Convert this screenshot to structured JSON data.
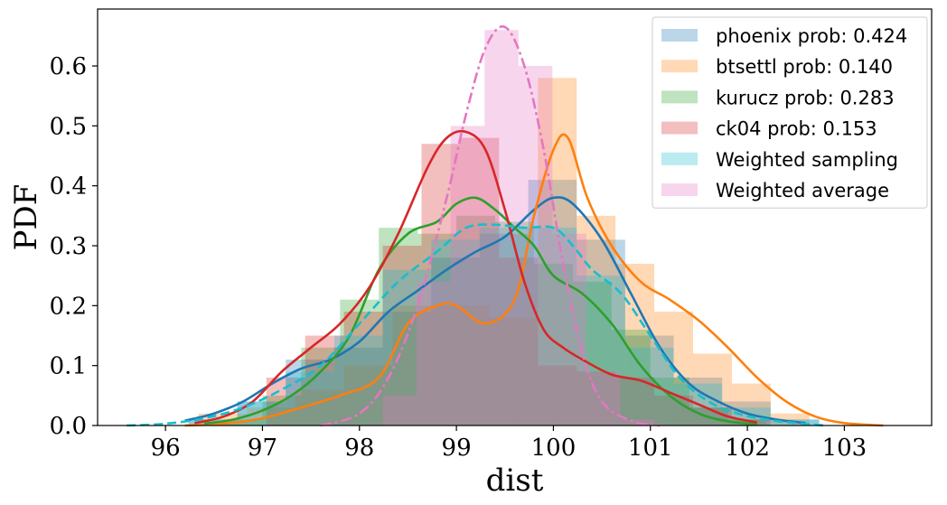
{
  "chart_data": {
    "type": "area",
    "xlabel": "dist",
    "ylabel": "PDF",
    "xlim": [
      95.3,
      103.9
    ],
    "ylim": [
      0.0,
      0.695
    ],
    "xticks": [
      96,
      97,
      98,
      99,
      100,
      101,
      102,
      103
    ],
    "yticks": [
      0.0,
      0.1,
      0.2,
      0.3,
      0.4,
      0.5,
      0.6
    ],
    "ytick_labels": [
      "0.0",
      "0.1",
      "0.2",
      "0.3",
      "0.4",
      "0.5",
      "0.6"
    ],
    "legend_position": "upper right",
    "grid": false,
    "histograms": [
      {
        "name": "phoenix prob: 0.424",
        "color": "#1f77b4",
        "bins": [
          {
            "x0": 96.24,
            "x1": 96.74,
            "h": 0.01
          },
          {
            "x0": 96.74,
            "x1": 97.24,
            "h": 0.04
          },
          {
            "x0": 97.24,
            "x1": 97.74,
            "h": 0.11
          },
          {
            "x0": 97.74,
            "x1": 98.24,
            "h": 0.13
          },
          {
            "x0": 98.24,
            "x1": 98.74,
            "h": 0.19
          },
          {
            "x0": 98.74,
            "x1": 99.24,
            "h": 0.28
          },
          {
            "x0": 99.24,
            "x1": 99.74,
            "h": 0.32
          },
          {
            "x0": 99.74,
            "x1": 100.24,
            "h": 0.41
          },
          {
            "x0": 100.24,
            "x1": 100.74,
            "h": 0.31
          },
          {
            "x0": 100.74,
            "x1": 101.24,
            "h": 0.15
          },
          {
            "x0": 101.24,
            "x1": 101.74,
            "h": 0.08
          },
          {
            "x0": 101.74,
            "x1": 102.24,
            "h": 0.04
          },
          {
            "x0": 102.24,
            "x1": 102.74,
            "h": 0.01
          }
        ]
      },
      {
        "name": "btsettl prob: 0.140",
        "color": "#ff7f0e",
        "bins": [
          {
            "x0": 96.34,
            "x1": 96.84,
            "h": 0.02
          },
          {
            "x0": 96.84,
            "x1": 97.34,
            "h": 0.03
          },
          {
            "x0": 97.34,
            "x1": 97.84,
            "h": 0.06
          },
          {
            "x0": 97.84,
            "x1": 98.34,
            "h": 0.1
          },
          {
            "x0": 98.34,
            "x1": 98.84,
            "h": 0.2
          },
          {
            "x0": 98.84,
            "x1": 99.34,
            "h": 0.2
          },
          {
            "x0": 99.34,
            "x1": 99.84,
            "h": 0.18
          },
          {
            "x0": 99.84,
            "x1": 100.24,
            "h": 0.58
          },
          {
            "x0": 100.24,
            "x1": 100.64,
            "h": 0.35
          },
          {
            "x0": 100.64,
            "x1": 101.04,
            "h": 0.27
          },
          {
            "x0": 101.04,
            "x1": 101.44,
            "h": 0.19
          },
          {
            "x0": 101.44,
            "x1": 101.84,
            "h": 0.12
          },
          {
            "x0": 101.84,
            "x1": 102.24,
            "h": 0.07
          },
          {
            "x0": 102.24,
            "x1": 102.64,
            "h": 0.02
          }
        ]
      },
      {
        "name": "kurucz prob: 0.283",
        "color": "#2ca02c",
        "bins": [
          {
            "x0": 96.6,
            "x1": 97.0,
            "h": 0.01
          },
          {
            "x0": 97.0,
            "x1": 97.4,
            "h": 0.05
          },
          {
            "x0": 97.4,
            "x1": 97.8,
            "h": 0.13
          },
          {
            "x0": 97.8,
            "x1": 98.2,
            "h": 0.21
          },
          {
            "x0": 98.2,
            "x1": 98.6,
            "h": 0.33
          },
          {
            "x0": 98.6,
            "x1": 99.0,
            "h": 0.32
          },
          {
            "x0": 99.0,
            "x1": 99.4,
            "h": 0.35
          },
          {
            "x0": 99.4,
            "x1": 99.8,
            "h": 0.34
          },
          {
            "x0": 99.8,
            "x1": 100.2,
            "h": 0.27
          },
          {
            "x0": 100.2,
            "x1": 100.6,
            "h": 0.24
          },
          {
            "x0": 100.6,
            "x1": 101.0,
            "h": 0.16
          },
          {
            "x0": 101.0,
            "x1": 101.4,
            "h": 0.08
          },
          {
            "x0": 101.4,
            "x1": 101.8,
            "h": 0.03
          },
          {
            "x0": 101.8,
            "x1": 102.2,
            "h": 0.01
          }
        ]
      },
      {
        "name": "ck04 prob: 0.153",
        "color": "#d62728",
        "bins": [
          {
            "x0": 97.04,
            "x1": 97.44,
            "h": 0.08
          },
          {
            "x0": 97.44,
            "x1": 97.84,
            "h": 0.15
          },
          {
            "x0": 97.84,
            "x1": 98.24,
            "h": 0.19
          },
          {
            "x0": 98.24,
            "x1": 98.64,
            "h": 0.3
          },
          {
            "x0": 98.64,
            "x1": 99.04,
            "h": 0.47
          },
          {
            "x0": 99.04,
            "x1": 99.44,
            "h": 0.48
          },
          {
            "x0": 99.44,
            "x1": 99.84,
            "h": 0.28
          },
          {
            "x0": 99.84,
            "x1": 100.24,
            "h": 0.1
          },
          {
            "x0": 100.24,
            "x1": 100.64,
            "h": 0.09
          },
          {
            "x0": 100.64,
            "x1": 101.04,
            "h": 0.08
          },
          {
            "x0": 101.04,
            "x1": 101.44,
            "h": 0.05
          },
          {
            "x0": 101.44,
            "x1": 101.84,
            "h": 0.03
          },
          {
            "x0": 101.84,
            "x1": 102.24,
            "h": 0.01
          }
        ]
      },
      {
        "name": "Weighted sampling",
        "color": "#17becf",
        "bins": [
          {
            "x0": 96.24,
            "x1": 96.74,
            "h": 0.01
          },
          {
            "x0": 96.74,
            "x1": 97.24,
            "h": 0.04
          },
          {
            "x0": 97.24,
            "x1": 97.74,
            "h": 0.09
          },
          {
            "x0": 97.74,
            "x1": 98.24,
            "h": 0.15
          },
          {
            "x0": 98.24,
            "x1": 98.74,
            "h": 0.26
          },
          {
            "x0": 98.74,
            "x1": 99.24,
            "h": 0.31
          },
          {
            "x0": 99.24,
            "x1": 99.74,
            "h": 0.33
          },
          {
            "x0": 99.74,
            "x1": 100.24,
            "h": 0.33
          },
          {
            "x0": 100.24,
            "x1": 100.74,
            "h": 0.25
          },
          {
            "x0": 100.74,
            "x1": 101.24,
            "h": 0.13
          },
          {
            "x0": 101.24,
            "x1": 101.74,
            "h": 0.07
          },
          {
            "x0": 101.74,
            "x1": 102.24,
            "h": 0.03
          },
          {
            "x0": 102.24,
            "x1": 102.74,
            "h": 0.01
          }
        ]
      },
      {
        "name": "Weighted average",
        "color": "#e377c2",
        "bins": [
          {
            "x0": 98.24,
            "x1": 98.59,
            "h": 0.05
          },
          {
            "x0": 98.59,
            "x1": 98.94,
            "h": 0.24
          },
          {
            "x0": 98.94,
            "x1": 99.29,
            "h": 0.5
          },
          {
            "x0": 99.29,
            "x1": 99.64,
            "h": 0.66
          },
          {
            "x0": 99.64,
            "x1": 99.99,
            "h": 0.6
          },
          {
            "x0": 99.99,
            "x1": 100.34,
            "h": 0.32
          },
          {
            "x0": 100.34,
            "x1": 100.69,
            "h": 0.09
          },
          {
            "x0": 100.69,
            "x1": 101.04,
            "h": 0.01
          }
        ]
      }
    ],
    "curves": [
      {
        "name": "phoenix KDE",
        "color": "#1f77b4",
        "dash": "solid",
        "x": [
          96.2,
          96.5,
          96.8,
          97.1,
          97.4,
          97.7,
          98.0,
          98.3,
          98.6,
          98.9,
          99.2,
          99.5,
          99.8,
          100.0,
          100.2,
          100.5,
          100.8,
          101.1,
          101.4,
          101.7,
          102.0,
          102.3,
          102.6
        ],
        "y": [
          0.008,
          0.02,
          0.04,
          0.07,
          0.095,
          0.11,
          0.14,
          0.19,
          0.225,
          0.26,
          0.29,
          0.315,
          0.36,
          0.38,
          0.37,
          0.31,
          0.22,
          0.13,
          0.07,
          0.04,
          0.02,
          0.01,
          0.004
        ]
      },
      {
        "name": "btsettl KDE",
        "color": "#ff7f0e",
        "dash": "solid",
        "x": [
          96.2,
          96.6,
          97.0,
          97.4,
          97.8,
          98.2,
          98.5,
          98.8,
          99.0,
          99.3,
          99.6,
          99.8,
          100.0,
          100.15,
          100.35,
          100.6,
          100.9,
          101.2,
          101.5,
          101.8,
          102.1,
          102.4,
          102.7,
          103.0,
          103.4
        ],
        "y": [
          0.0,
          0.003,
          0.012,
          0.03,
          0.05,
          0.08,
          0.17,
          0.2,
          0.2,
          0.17,
          0.21,
          0.35,
          0.46,
          0.48,
          0.38,
          0.3,
          0.24,
          0.21,
          0.175,
          0.13,
          0.08,
          0.04,
          0.015,
          0.004,
          0.0
        ]
      },
      {
        "name": "kurucz KDE",
        "color": "#2ca02c",
        "dash": "solid",
        "x": [
          96.4,
          96.7,
          97.0,
          97.3,
          97.6,
          97.9,
          98.2,
          98.5,
          98.8,
          99.0,
          99.2,
          99.4,
          99.6,
          99.8,
          100.0,
          100.3,
          100.6,
          100.9,
          101.2,
          101.5,
          101.8,
          102.1
        ],
        "y": [
          0.003,
          0.01,
          0.025,
          0.05,
          0.09,
          0.15,
          0.26,
          0.32,
          0.34,
          0.37,
          0.38,
          0.36,
          0.33,
          0.3,
          0.25,
          0.22,
          0.17,
          0.1,
          0.05,
          0.02,
          0.007,
          0.002
        ]
      },
      {
        "name": "ck04 KDE",
        "color": "#d62728",
        "dash": "solid",
        "x": [
          96.3,
          96.6,
          96.9,
          97.2,
          97.5,
          97.8,
          98.1,
          98.4,
          98.7,
          98.9,
          99.1,
          99.3,
          99.5,
          99.7,
          99.9,
          100.1,
          100.3,
          100.6,
          100.9,
          101.2,
          101.5,
          101.8,
          102.1
        ],
        "y": [
          0.004,
          0.015,
          0.04,
          0.09,
          0.13,
          0.17,
          0.23,
          0.32,
          0.43,
          0.48,
          0.49,
          0.46,
          0.36,
          0.24,
          0.16,
          0.13,
          0.11,
          0.085,
          0.075,
          0.055,
          0.035,
          0.015,
          0.005
        ]
      },
      {
        "name": "Weighted sampling KDE",
        "color": "#17becf",
        "dash": "dashed",
        "x": [
          95.6,
          96.0,
          96.4,
          96.8,
          97.2,
          97.6,
          98.0,
          98.4,
          98.8,
          99.1,
          99.4,
          99.7,
          100.0,
          100.2,
          100.4,
          100.7,
          101.0,
          101.3,
          101.6,
          101.9,
          102.2,
          102.5,
          102.8
        ],
        "y": [
          0.0,
          0.003,
          0.012,
          0.03,
          0.06,
          0.1,
          0.17,
          0.24,
          0.29,
          0.33,
          0.335,
          0.33,
          0.33,
          0.3,
          0.26,
          0.22,
          0.15,
          0.08,
          0.04,
          0.02,
          0.01,
          0.004,
          0.0
        ]
      },
      {
        "name": "Weighted average KDE",
        "color": "#e377c2",
        "dash": "dashdot",
        "x": [
          97.6,
          98.0,
          98.3,
          98.6,
          98.9,
          99.1,
          99.3,
          99.5,
          99.7,
          99.9,
          100.1,
          100.3,
          100.5,
          100.8,
          101.1
        ],
        "y": [
          0.0,
          0.02,
          0.08,
          0.2,
          0.38,
          0.52,
          0.63,
          0.665,
          0.6,
          0.46,
          0.27,
          0.12,
          0.04,
          0.008,
          0.0
        ]
      }
    ]
  }
}
